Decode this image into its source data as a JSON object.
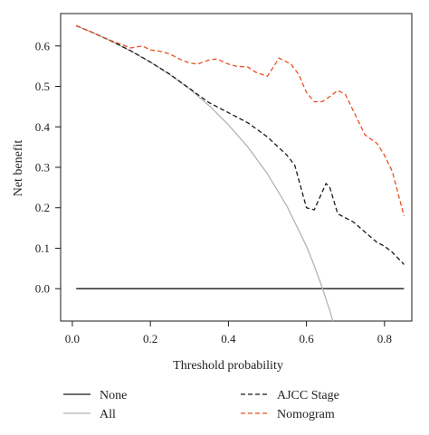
{
  "chart_data": {
    "type": "line",
    "xlabel": "Threshold probability",
    "ylabel": "Net benefit",
    "xlim": [
      -0.03,
      0.87
    ],
    "ylim": [
      -0.08,
      0.68
    ],
    "x_ticks": [
      0.0,
      0.2,
      0.4,
      0.6,
      0.8
    ],
    "y_ticks": [
      0.0,
      0.1,
      0.2,
      0.3,
      0.4,
      0.5,
      0.6
    ],
    "x_tick_labels": [
      "0.0",
      "0.2",
      "0.4",
      "0.6",
      "0.8"
    ],
    "y_tick_labels": [
      "0.0",
      "0.1",
      "0.2",
      "0.3",
      "0.4",
      "0.5",
      "0.6"
    ],
    "grid": false,
    "legend_position": "bottom",
    "series": [
      {
        "name": "None",
        "color": "#1a1a1a",
        "style": "solid",
        "x": [
          0.01,
          0.85
        ],
        "y": [
          0.0,
          0.0
        ]
      },
      {
        "name": "All",
        "color": "#b3b3b3",
        "style": "solid",
        "x": [
          0.01,
          0.05,
          0.1,
          0.15,
          0.2,
          0.25,
          0.3,
          0.35,
          0.4,
          0.45,
          0.5,
          0.55,
          0.6,
          0.62,
          0.64,
          0.66,
          0.68
        ],
        "y": [
          0.65,
          0.634,
          0.612,
          0.587,
          0.56,
          0.529,
          0.494,
          0.453,
          0.405,
          0.35,
          0.284,
          0.204,
          0.105,
          0.057,
          0.004,
          -0.055,
          -0.121
        ]
      },
      {
        "name": "AJCC Stage",
        "color": "#1a1a1a",
        "style": "dashed",
        "x": [
          0.01,
          0.05,
          0.1,
          0.15,
          0.2,
          0.25,
          0.3,
          0.35,
          0.4,
          0.45,
          0.5,
          0.55,
          0.57,
          0.6,
          0.62,
          0.65,
          0.66,
          0.68,
          0.72,
          0.75,
          0.78,
          0.8,
          0.82,
          0.85
        ],
        "y": [
          0.65,
          0.634,
          0.612,
          0.588,
          0.56,
          0.53,
          0.495,
          0.46,
          0.435,
          0.41,
          0.375,
          0.33,
          0.305,
          0.2,
          0.195,
          0.26,
          0.25,
          0.185,
          0.165,
          0.14,
          0.115,
          0.105,
          0.09,
          0.06
        ]
      },
      {
        "name": "Nomogram",
        "color": "#e8501f",
        "style": "dashed",
        "x": [
          0.01,
          0.05,
          0.1,
          0.15,
          0.18,
          0.2,
          0.22,
          0.25,
          0.28,
          0.3,
          0.32,
          0.35,
          0.37,
          0.4,
          0.42,
          0.45,
          0.47,
          0.5,
          0.53,
          0.56,
          0.58,
          0.6,
          0.62,
          0.64,
          0.66,
          0.68,
          0.7,
          0.72,
          0.75,
          0.78,
          0.8,
          0.82,
          0.85
        ],
        "y": [
          0.65,
          0.634,
          0.613,
          0.595,
          0.6,
          0.59,
          0.588,
          0.58,
          0.565,
          0.558,
          0.555,
          0.565,
          0.568,
          0.555,
          0.55,
          0.548,
          0.535,
          0.525,
          0.57,
          0.555,
          0.53,
          0.485,
          0.462,
          0.462,
          0.475,
          0.49,
          0.48,
          0.44,
          0.38,
          0.36,
          0.33,
          0.29,
          0.18
        ]
      }
    ]
  }
}
